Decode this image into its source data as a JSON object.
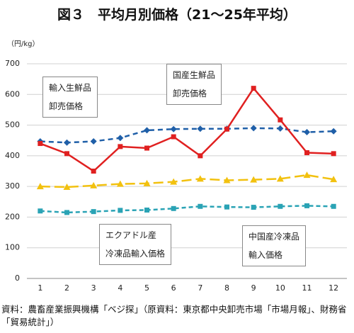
{
  "chart_data": {
    "type": "line",
    "title": "図３　平均月別価格（21～25年平均）",
    "y_unit": "（円/kg）",
    "source": "資料：農畜産業振興機構「ベジ探」（原資料：東京都中央卸売市場「市場月報」、財務省「貿易統計」）",
    "categories": [
      "1",
      "2",
      "3",
      "4",
      "5",
      "6",
      "7",
      "8",
      "9",
      "10",
      "11",
      "12"
    ],
    "ylim": [
      0,
      700
    ],
    "yticks": [
      0,
      100,
      200,
      300,
      400,
      500,
      600,
      700
    ],
    "grid": true,
    "series": [
      {
        "name": "輸入生鮮品\n卸売価格",
        "color": "#1f5fa8",
        "dash": "7,5",
        "marker": "diamond",
        "values": [
          447,
          443,
          447,
          458,
          483,
          487,
          488,
          488,
          490,
          489,
          477,
          480
        ]
      },
      {
        "name": "国産生鮮品\n卸売価格",
        "color": "#e02020",
        "dash": "none",
        "marker": "square",
        "values": [
          440,
          407,
          350,
          430,
          425,
          462,
          400,
          487,
          620,
          517,
          410,
          407
        ]
      },
      {
        "name": "エクアドル産\n冷凍品輸入価格",
        "color": "#f2c10f",
        "dash": "14,6",
        "marker": "triangle",
        "values": [
          300,
          298,
          303,
          308,
          310,
          315,
          325,
          320,
          322,
          325,
          337,
          323
        ]
      },
      {
        "name": "中国産冷凍品\n輸入価格",
        "color": "#2aa3b5",
        "dash": "6,4",
        "marker": "square",
        "values": [
          220,
          215,
          218,
          222,
          223,
          228,
          235,
          233,
          232,
          235,
          237,
          235
        ]
      }
    ]
  }
}
